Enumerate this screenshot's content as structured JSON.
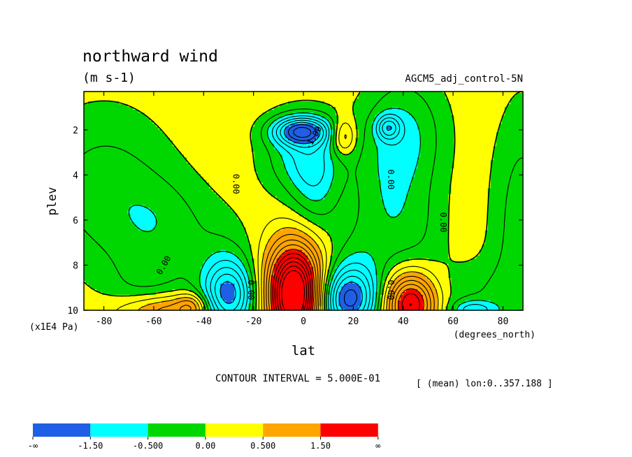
{
  "chart_data": {
    "type": "contour",
    "title": "northward wind",
    "units": "(m s-1)",
    "run_label": "AGCM5_adj_control-5N",
    "xlabel": "lat",
    "x_units": "(degrees_north)",
    "ylabel": "plev",
    "y_units": "(x1E4 Pa)",
    "xlim": [
      -88,
      88
    ],
    "ylim": [
      0.3,
      10
    ],
    "x_ticks": [
      "-80",
      "-60",
      "-40",
      "-20",
      "0",
      "20",
      "40",
      "60",
      "80"
    ],
    "y_ticks": [
      "2",
      "4",
      "6",
      "8",
      "10"
    ],
    "contour_interval_text": "CONTOUR INTERVAL = 5.000E-01",
    "mean_text": "[ (mean) lon:0..357.188 ]",
    "zero_contour_label": "0.00",
    "min_label": "-1.00",
    "colorbar": {
      "labels": [
        "-∞",
        "-1.50",
        "-0.500",
        "0.00",
        "0.500",
        "1.50",
        "∞"
      ],
      "colors": [
        "#1e5fe6",
        "#00ffff",
        "#00d700",
        "#ffff00",
        "#ffa500",
        "#ff0000"
      ]
    },
    "features": [
      {
        "lat": -78,
        "plev": 4.5,
        "value": -0.5,
        "sign": "negative"
      },
      {
        "lat": -2,
        "plev": 2.0,
        "value": -1.3,
        "sign": "negative"
      },
      {
        "lat": 16,
        "plev": 2.3,
        "value": 0.6,
        "sign": "positive"
      },
      {
        "lat": 38,
        "plev": 1.9,
        "value": -0.8,
        "sign": "negative"
      },
      {
        "lat": -30,
        "plev": 9.4,
        "value": -1.6,
        "sign": "negative"
      },
      {
        "lat": -3,
        "plev": 9.5,
        "value": 2.8,
        "sign": "positive"
      },
      {
        "lat": 18,
        "plev": 9.5,
        "value": -1.7,
        "sign": "negative"
      },
      {
        "lat": 43,
        "plev": 9.7,
        "value": 1.9,
        "sign": "positive"
      },
      {
        "lat": -55,
        "plev": 9.9,
        "value": 0.7,
        "sign": "positive"
      },
      {
        "lat": 68,
        "plev": 9.9,
        "value": -0.6,
        "sign": "negative"
      }
    ]
  }
}
